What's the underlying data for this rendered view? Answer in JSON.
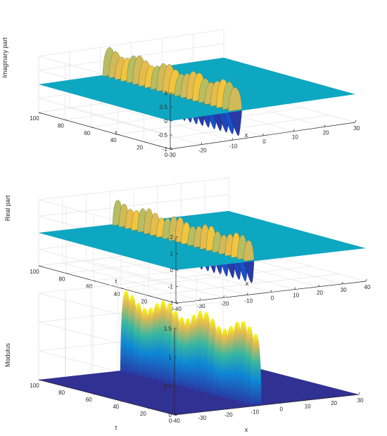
{
  "chart_data": [
    {
      "type": "surface",
      "zlabel": "Imaginary part",
      "xlabel": "x",
      "ylabel": "t",
      "zlim": [
        -1,
        1
      ],
      "xlim": [
        -30,
        30
      ],
      "ylim": [
        0,
        100
      ],
      "z_ticks": [
        "-1",
        "-0.5",
        "0",
        "0.5",
        "1"
      ],
      "x_ticks": [
        "-30",
        "-20",
        "-10",
        "0",
        "10",
        "20",
        "30"
      ],
      "t_ticks": [
        "0",
        "20",
        "40",
        "60",
        "80",
        "100"
      ],
      "wave": {
        "center_x": -8,
        "peaks": 22,
        "peak_amplitude": 1,
        "sign": "both"
      },
      "grid": true,
      "colormap": "parula"
    },
    {
      "type": "surface",
      "zlabel": "Real part",
      "xlabel": "x",
      "ylabel": "t",
      "zlim": [
        -2,
        2
      ],
      "xlim": [
        -40,
        40
      ],
      "ylim": [
        0,
        100
      ],
      "z_ticks": [
        "-2",
        "-1",
        "0",
        "1",
        "2"
      ],
      "x_ticks": [
        "-40",
        "-30",
        "-20",
        "-10",
        "0",
        "10",
        "20",
        "30",
        "40"
      ],
      "t_ticks": [
        "0",
        "20",
        "40",
        "60",
        "80",
        "100"
      ],
      "wave": {
        "center_x": -8,
        "peaks": 22,
        "peak_amplitude": 1.5,
        "sign": "both"
      },
      "grid": true,
      "colormap": "parula"
    },
    {
      "type": "surface",
      "zlabel": "Modulus",
      "xlabel": "x",
      "ylabel": "t",
      "zlim": [
        0,
        1.5
      ],
      "xlim": [
        -40,
        30
      ],
      "ylim": [
        0,
        100
      ],
      "z_ticks": [
        "0",
        "0.5",
        "1",
        "1.5"
      ],
      "x_ticks": [
        "-40",
        "-30",
        "-20",
        "-10",
        "0",
        "10",
        "20",
        "30"
      ],
      "t_ticks": [
        "0",
        "20",
        "40",
        "60",
        "80",
        "100"
      ],
      "wave": {
        "center_x": -8,
        "peaks": 22,
        "peak_amplitude": 1.4,
        "sign": "positive"
      },
      "grid": true,
      "colormap": "parula"
    }
  ]
}
